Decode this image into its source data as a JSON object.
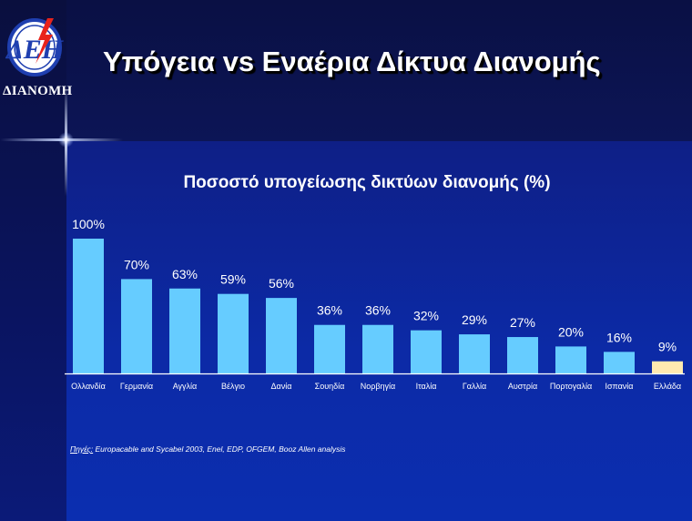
{
  "header": {
    "title": "Υπόγεια vs Εναέρια Δίκτυα Διανομής",
    "logo": {
      "mark": "ΔΕΗ",
      "caption": "ΔΙΑΝΟΜΗ"
    }
  },
  "colors": {
    "bar": "#66ccff",
    "highlight_bar": "#ffe9b0",
    "axis": "#ffffff"
  },
  "chart_data": {
    "type": "bar",
    "title": "Ποσοστό υπογείωσης δικτύων διανομής (%)",
    "categories": [
      "Ολλανδία",
      "Γερμανία",
      "Αγγλία",
      "Βέλγιο",
      "Δανία",
      "Σουηδία",
      "Νορβηγία",
      "Ιταλία",
      "Γαλλία",
      "Αυστρία",
      "Πορτογαλία",
      "Ισπανία",
      "Ελλάδα"
    ],
    "values": [
      100,
      70,
      63,
      59,
      56,
      36,
      36,
      32,
      29,
      27,
      20,
      16,
      9
    ],
    "value_labels": [
      "100%",
      "70%",
      "63%",
      "59%",
      "56%",
      "36%",
      "36%",
      "32%",
      "29%",
      "27%",
      "20%",
      "16%",
      "9%"
    ],
    "highlight_category": "Ελλάδα",
    "ylim": [
      0,
      100
    ],
    "xlabel": "",
    "ylabel": "",
    "grid": false,
    "legend": "none"
  },
  "footer": {
    "source_label": "Πηγές:",
    "source_text": "Europacable and Sycabel 2003, Enel, EDP, OFGEM, Booz Allen analysis"
  }
}
